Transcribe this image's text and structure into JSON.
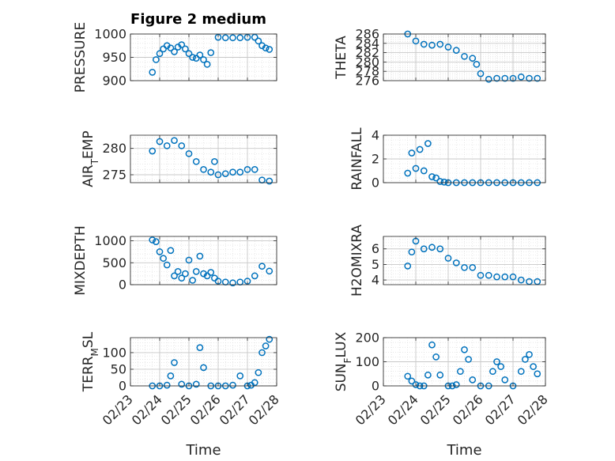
{
  "figure": {
    "title": "Figure 2 medium",
    "marker_color": "#0072BD"
  },
  "chart_data": [
    {
      "type": "scatter",
      "ylabel": "PRESSURE",
      "ylabel_sub": "",
      "ylim": [
        900,
        1000
      ],
      "yticks": [
        900,
        950,
        1000
      ],
      "x": [
        "02/23 18:00",
        "02/23 21:00",
        "02/24 00:00",
        "02/24 03:00",
        "02/24 06:00",
        "02/24 09:00",
        "02/24 12:00",
        "02/24 15:00",
        "02/24 18:00",
        "02/24 21:00",
        "02/25 00:00",
        "02/25 03:00",
        "02/25 06:00",
        "02/25 09:00",
        "02/25 12:00",
        "02/25 15:00",
        "02/25 18:00",
        "02/26 00:00",
        "02/26 06:00",
        "02/26 12:00",
        "02/26 18:00",
        "02/27 00:00",
        "02/27 06:00",
        "02/27 09:00",
        "02/27 12:00",
        "02/27 15:00",
        "02/27 18:00"
      ],
      "y": [
        918,
        945,
        958,
        968,
        975,
        970,
        962,
        972,
        977,
        968,
        958,
        950,
        948,
        955,
        945,
        935,
        960,
        993,
        992,
        992,
        992,
        993,
        993,
        985,
        975,
        970,
        967
      ]
    },
    {
      "type": "scatter",
      "ylabel": "THETA",
      "ylabel_sub": "",
      "ylim": [
        276,
        286
      ],
      "yticks": [
        276,
        278,
        280,
        282,
        284,
        286
      ],
      "x": [
        "02/23 18:00",
        "02/24 00:00",
        "02/24 06:00",
        "02/24 12:00",
        "02/24 18:00",
        "02/25 00:00",
        "02/25 06:00",
        "02/25 12:00",
        "02/25 18:00",
        "02/25 21:00",
        "02/26 00:00",
        "02/26 06:00",
        "02/26 12:00",
        "02/26 18:00",
        "02/27 00:00",
        "02/27 06:00",
        "02/27 12:00",
        "02/27 18:00"
      ],
      "y": [
        286,
        284.5,
        283.8,
        283.6,
        283.8,
        283.2,
        282.5,
        281.2,
        280.8,
        279.5,
        277.5,
        276.3,
        276.5,
        276.5,
        276.5,
        276.8,
        276.5,
        276.5
      ]
    },
    {
      "type": "scatter",
      "ylabel": "AIR",
      "ylabel_sub": "T",
      "ylabel_rest": "EMP",
      "ylim": [
        273.5,
        282.5
      ],
      "yticks": [
        275,
        280
      ],
      "x": [
        "02/23 18:00",
        "02/24 00:00",
        "02/24 06:00",
        "02/24 12:00",
        "02/24 18:00",
        "02/25 00:00",
        "02/25 06:00",
        "02/25 12:00",
        "02/25 18:00",
        "02/25 21:00",
        "02/26 00:00",
        "02/26 06:00",
        "02/26 12:00",
        "02/26 18:00",
        "02/27 00:00",
        "02/27 06:00",
        "02/27 12:00",
        "02/27 18:00"
      ],
      "y": [
        279.5,
        281.3,
        280.5,
        281.5,
        280.5,
        279,
        277.5,
        276,
        275.5,
        277.5,
        275,
        275.2,
        275.5,
        275.5,
        276,
        276,
        274,
        273.8
      ]
    },
    {
      "type": "scatter",
      "ylabel": "RAINFALL",
      "ylabel_sub": "",
      "ylim": [
        0,
        4
      ],
      "yticks": [
        0,
        2,
        4
      ],
      "x": [
        "02/23 18:00",
        "02/23 21:00",
        "02/24 00:00",
        "02/24 03:00",
        "02/24 06:00",
        "02/24 09:00",
        "02/24 12:00",
        "02/24 15:00",
        "02/24 18:00",
        "02/24 21:00",
        "02/25 00:00",
        "02/25 06:00",
        "02/25 12:00",
        "02/25 18:00",
        "02/26 00:00",
        "02/26 06:00",
        "02/26 12:00",
        "02/26 18:00",
        "02/27 00:00",
        "02/27 06:00",
        "02/27 12:00",
        "02/27 18:00"
      ],
      "y": [
        0.8,
        2.5,
        1.2,
        2.8,
        1,
        3.3,
        0.5,
        0.4,
        0.1,
        0.05,
        0,
        0,
        0,
        0,
        0,
        0,
        0,
        0,
        0,
        0,
        0,
        0
      ]
    },
    {
      "type": "scatter",
      "ylabel": "MIXDEPTH",
      "ylabel_sub": "",
      "ylim": [
        0,
        1100
      ],
      "yticks": [
        0,
        500,
        1000
      ],
      "x": [
        "02/23 18:00",
        "02/23 21:00",
        "02/24 00:00",
        "02/24 03:00",
        "02/24 06:00",
        "02/24 09:00",
        "02/24 12:00",
        "02/24 15:00",
        "02/24 18:00",
        "02/24 21:00",
        "02/25 00:00",
        "02/25 03:00",
        "02/25 06:00",
        "02/25 09:00",
        "02/25 12:00",
        "02/25 15:00",
        "02/25 18:00",
        "02/25 21:00",
        "02/26 00:00",
        "02/26 06:00",
        "02/26 12:00",
        "02/26 18:00",
        "02/27 00:00",
        "02/27 06:00",
        "02/27 12:00",
        "02/27 18:00"
      ],
      "y": [
        1020,
        980,
        750,
        600,
        450,
        780,
        200,
        300,
        150,
        250,
        560,
        100,
        300,
        650,
        250,
        200,
        280,
        150,
        80,
        60,
        40,
        60,
        80,
        200,
        420,
        310
      ]
    },
    {
      "type": "scatter",
      "ylabel": "H2OMIXRA",
      "ylabel_sub": "",
      "ylim": [
        3.7,
        6.8
      ],
      "yticks": [
        4,
        5,
        6
      ],
      "x": [
        "02/23 18:00",
        "02/23 21:00",
        "02/24 00:00",
        "02/24 06:00",
        "02/24 12:00",
        "02/24 18:00",
        "02/25 00:00",
        "02/25 06:00",
        "02/25 12:00",
        "02/25 18:00",
        "02/26 00:00",
        "02/26 06:00",
        "02/26 12:00",
        "02/26 18:00",
        "02/27 00:00",
        "02/27 06:00",
        "02/27 12:00",
        "02/27 18:00"
      ],
      "y": [
        4.9,
        5.8,
        6.5,
        6.0,
        6.1,
        6.0,
        5.4,
        5.1,
        4.8,
        4.8,
        4.3,
        4.3,
        4.2,
        4.2,
        4.2,
        4.0,
        3.9,
        3.9
      ]
    },
    {
      "type": "scatter",
      "ylabel": "TERR",
      "ylabel_sub": "M",
      "ylabel_rest": "SL",
      "ylim": [
        0,
        145
      ],
      "yticks": [
        0,
        50,
        100
      ],
      "x": [
        "02/23 18:00",
        "02/24 00:00",
        "02/24 06:00",
        "02/24 09:00",
        "02/24 12:00",
        "02/24 18:00",
        "02/25 00:00",
        "02/25 06:00",
        "02/25 09:00",
        "02/25 12:00",
        "02/25 18:00",
        "02/26 00:00",
        "02/26 06:00",
        "02/26 12:00",
        "02/26 18:00",
        "02/27 00:00",
        "02/27 03:00",
        "02/27 06:00",
        "02/27 09:00",
        "02/27 12:00",
        "02/27 15:00",
        "02/27 18:00"
      ],
      "y": [
        0,
        0,
        2,
        30,
        70,
        5,
        0,
        5,
        115,
        55,
        0,
        0,
        0,
        2,
        30,
        0,
        2,
        10,
        40,
        100,
        120,
        140
      ]
    },
    {
      "type": "scatter",
      "ylabel": "SUN",
      "ylabel_sub": "F",
      "ylabel_rest": "LUX",
      "ylim": [
        0,
        200
      ],
      "yticks": [
        0,
        100,
        200
      ],
      "x": [
        "02/23 18:00",
        "02/23 21:00",
        "02/24 00:00",
        "02/24 03:00",
        "02/24 06:00",
        "02/24 09:00",
        "02/24 12:00",
        "02/24 15:00",
        "02/24 18:00",
        "02/25 00:00",
        "02/25 03:00",
        "02/25 06:00",
        "02/25 09:00",
        "02/25 12:00",
        "02/25 15:00",
        "02/25 18:00",
        "02/26 00:00",
        "02/26 06:00",
        "02/26 09:00",
        "02/26 12:00",
        "02/26 15:00",
        "02/26 18:00",
        "02/27 00:00",
        "02/27 06:00",
        "02/27 09:00",
        "02/27 12:00",
        "02/27 15:00",
        "02/27 18:00"
      ],
      "y": [
        40,
        20,
        5,
        0,
        0,
        45,
        170,
        120,
        45,
        0,
        0,
        5,
        60,
        150,
        110,
        25,
        0,
        0,
        60,
        100,
        80,
        25,
        0,
        60,
        110,
        130,
        80,
        50
      ]
    }
  ],
  "xaxis": {
    "ticks": [
      "02/23",
      "02/24",
      "02/25",
      "02/26",
      "02/27",
      "02/28"
    ],
    "range": [
      "02/23 00:00",
      "02/28 00:00"
    ],
    "label": "Time"
  }
}
